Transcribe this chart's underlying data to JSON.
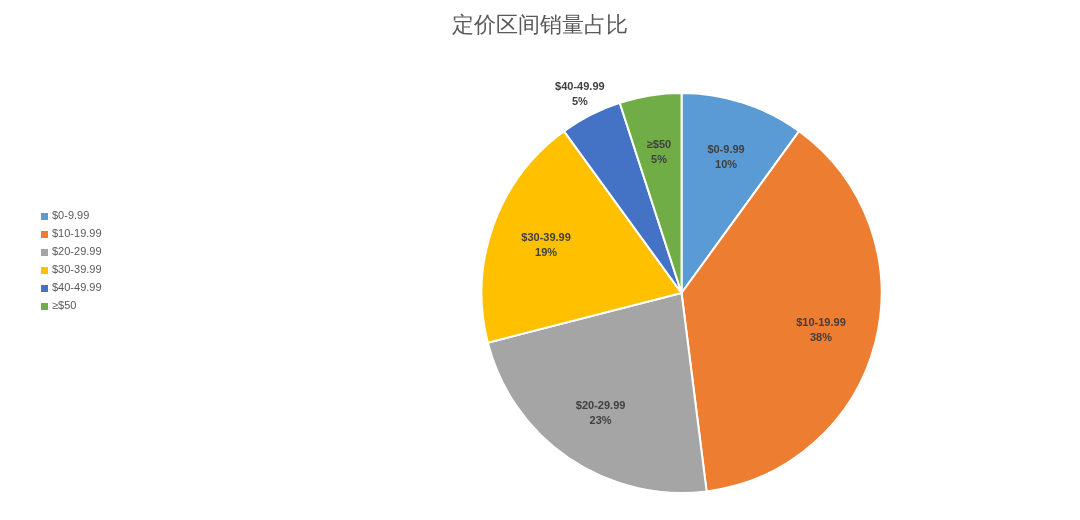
{
  "chart_data": {
    "type": "pie",
    "title": "定价区间销量占比",
    "categories": [
      "$0-9.99",
      "$10-19.99",
      "$20-29.99",
      "$30-39.99",
      "$40-49.99",
      "≥$50"
    ],
    "values": [
      10,
      38,
      23,
      19,
      5,
      5
    ],
    "colors": [
      "#5b9bd5",
      "#ed7d31",
      "#a5a5a5",
      "#ffc000",
      "#4472c4",
      "#70ad47"
    ],
    "value_labels": [
      "10%",
      "38%",
      "23%",
      "19%",
      "5%",
      "5%"
    ],
    "legend": "left"
  }
}
